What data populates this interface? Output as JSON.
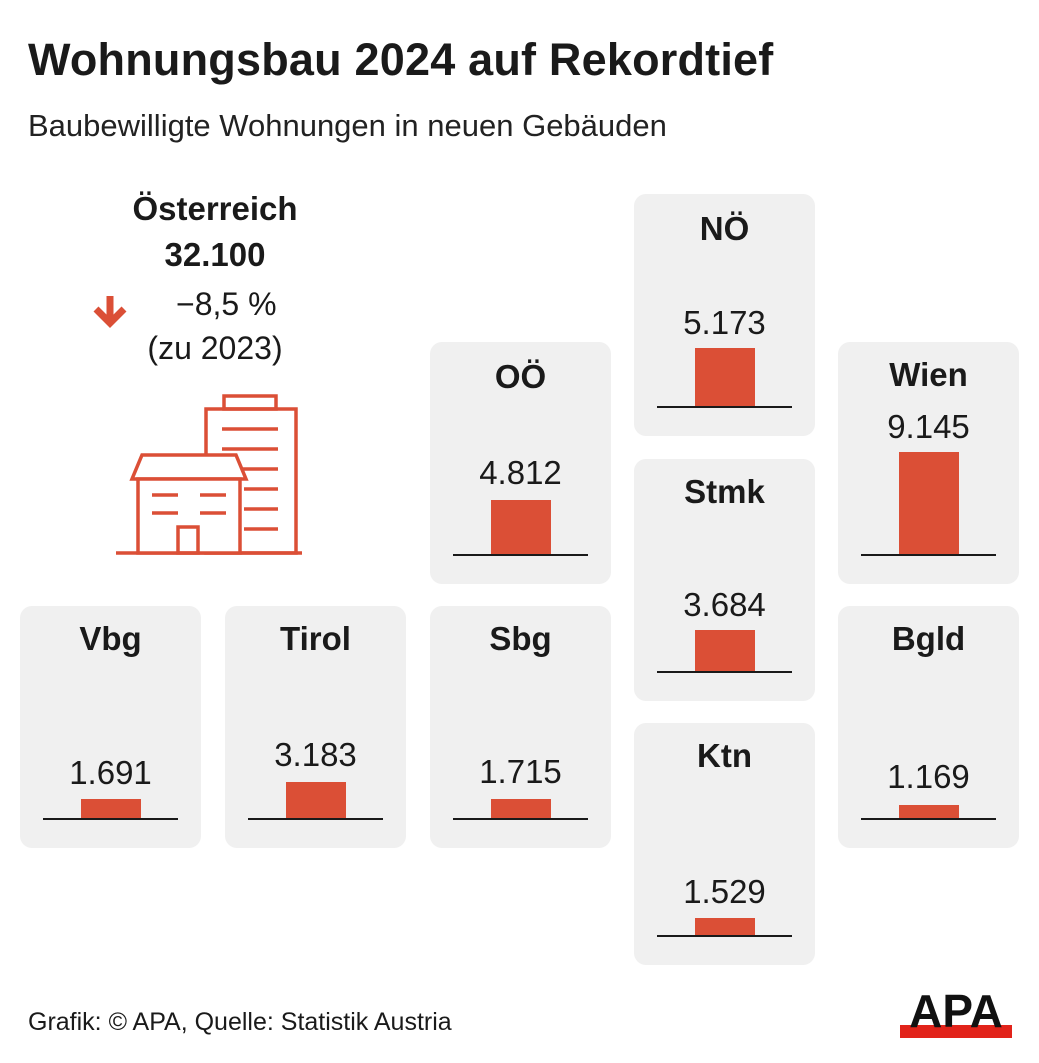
{
  "title": "Wohnungsbau 2024 auf Rekordtief",
  "subtitle": "Baubewilligte Wohnungen in neuen Gebäuden",
  "summary": {
    "region": "Österreich",
    "total": "32.100",
    "change": "−8,5 %",
    "reference": "(zu 2023)"
  },
  "icons": {
    "trend": "arrow-down-icon",
    "illustration": "building-icon",
    "logo": "apa-logo"
  },
  "colors": {
    "bar": "#db4f36",
    "card": "#f0f0f0",
    "text": "#1a1a1a"
  },
  "chart_data": {
    "type": "bar",
    "title": "Wohnungsbau 2024 auf Rekordtief",
    "subtitle": "Baubewilligte Wohnungen in neuen Gebäuden",
    "unit": "Wohnungen",
    "ylim": [
      0,
      9145
    ],
    "categories": [
      "NÖ",
      "OÖ",
      "Wien",
      "Stmk",
      "Vbg",
      "Tirol",
      "Sbg",
      "Bgld",
      "Ktn"
    ],
    "values": [
      5173,
      4812,
      9145,
      3684,
      1691,
      3183,
      1715,
      1169,
      1529
    ],
    "labels": [
      "5.173",
      "4.812",
      "9.145",
      "3.684",
      "1.691",
      "3.183",
      "1.715",
      "1.169",
      "1.529"
    ]
  },
  "footer": {
    "credit": "Grafik: © APA, Quelle: Statistik Austria",
    "logo_text": "APA"
  }
}
